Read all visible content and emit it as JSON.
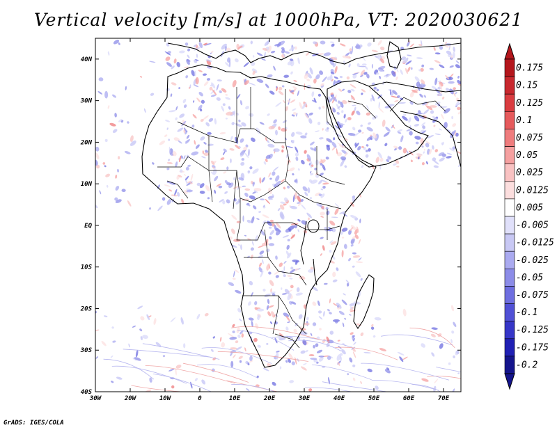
{
  "title": "Vertical velocity [m/s] at 1000hPa, VT: 2020030621",
  "credit": "GrADS: IGES/COLA",
  "map": {
    "projection": "latlon",
    "lon_range": [
      -30,
      75
    ],
    "lat_range": [
      -40,
      45
    ],
    "x_ticks": [
      "30W",
      "20W",
      "10W",
      "0",
      "10E",
      "20E",
      "30E",
      "40E",
      "50E",
      "60E",
      "70E"
    ],
    "y_ticks": [
      "40N",
      "30N",
      "20N",
      "10N",
      "EQ",
      "10S",
      "20S",
      "30S",
      "40S"
    ]
  },
  "colorbar": {
    "labels": [
      "0.175",
      "0.15",
      "0.125",
      "0.1",
      "0.075",
      "0.05",
      "0.025",
      "0.0125",
      "0.005",
      "-0.005",
      "-0.0125",
      "-0.025",
      "-0.05",
      "-0.075",
      "-0.1",
      "-0.125",
      "-0.175",
      "-0.2"
    ],
    "colors": [
      "#b4161c",
      "#c8282e",
      "#da3c40",
      "#e65a5c",
      "#ef7c7d",
      "#f5a0a0",
      "#f9c2c2",
      "#fcdede",
      "#ffffff",
      "#e0e0fa",
      "#c8c8f4",
      "#aaaaf0",
      "#8c8ce8",
      "#6e6ee0",
      "#5050d6",
      "#3636c8",
      "#2020b4",
      "#14148c"
    ]
  }
}
